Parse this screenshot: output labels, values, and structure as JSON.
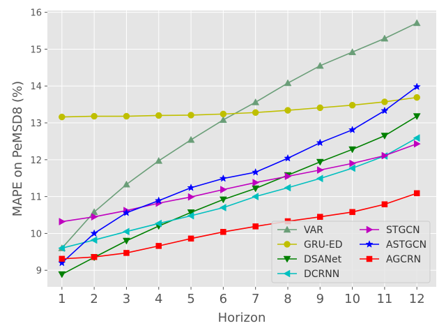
{
  "chart_data": {
    "type": "line",
    "title": "",
    "xlabel": "Horizon",
    "ylabel": "MAPE on PeMSD8 (%)",
    "x": [
      1,
      2,
      3,
      4,
      5,
      6,
      7,
      8,
      9,
      10,
      11,
      12
    ],
    "xlim": [
      0.55,
      12.6
    ],
    "ylim": [
      8.55,
      16.05
    ],
    "yticks": [
      9,
      10,
      11,
      12,
      13,
      14,
      15,
      16
    ],
    "grid": true,
    "legend_position": "lower-right",
    "legend_columns": 2,
    "series": [
      {
        "name": "VAR",
        "color": "#6a9e78",
        "marker": "triangle-up",
        "values": [
          9.6,
          10.58,
          11.33,
          11.97,
          12.54,
          13.08,
          13.56,
          14.08,
          14.55,
          14.92,
          15.29,
          15.71
        ]
      },
      {
        "name": "GRU-ED",
        "color": "#bfbf00",
        "marker": "circle",
        "values": [
          13.16,
          13.18,
          13.18,
          13.2,
          13.21,
          13.24,
          13.28,
          13.34,
          13.41,
          13.48,
          13.57,
          13.69
        ]
      },
      {
        "name": "DSANet",
        "color": "#008000",
        "marker": "triangle-down",
        "values": [
          8.89,
          9.35,
          9.8,
          10.2,
          10.57,
          10.92,
          11.22,
          11.58,
          11.94,
          12.28,
          12.65,
          13.18
        ]
      },
      {
        "name": "DCRNN",
        "color": "#00bfbf",
        "marker": "triangle-left",
        "values": [
          9.6,
          9.82,
          10.05,
          10.27,
          10.48,
          10.7,
          11.0,
          11.24,
          11.49,
          11.77,
          12.1,
          12.59
        ]
      },
      {
        "name": "STGCN",
        "color": "#bf00bf",
        "marker": "triangle-right",
        "values": [
          10.32,
          10.45,
          10.62,
          10.82,
          10.99,
          11.19,
          11.38,
          11.55,
          11.72,
          11.9,
          12.11,
          12.43
        ]
      },
      {
        "name": "ASTGCN",
        "color": "#0000ff",
        "marker": "star",
        "values": [
          9.2,
          10.0,
          10.56,
          10.89,
          11.24,
          11.49,
          11.66,
          12.04,
          12.46,
          12.81,
          13.33,
          13.98
        ]
      },
      {
        "name": "AGCRN",
        "color": "#ff0000",
        "marker": "square",
        "values": [
          9.31,
          9.36,
          9.47,
          9.66,
          9.86,
          10.04,
          10.19,
          10.33,
          10.45,
          10.58,
          10.79,
          11.09
        ]
      }
    ]
  }
}
